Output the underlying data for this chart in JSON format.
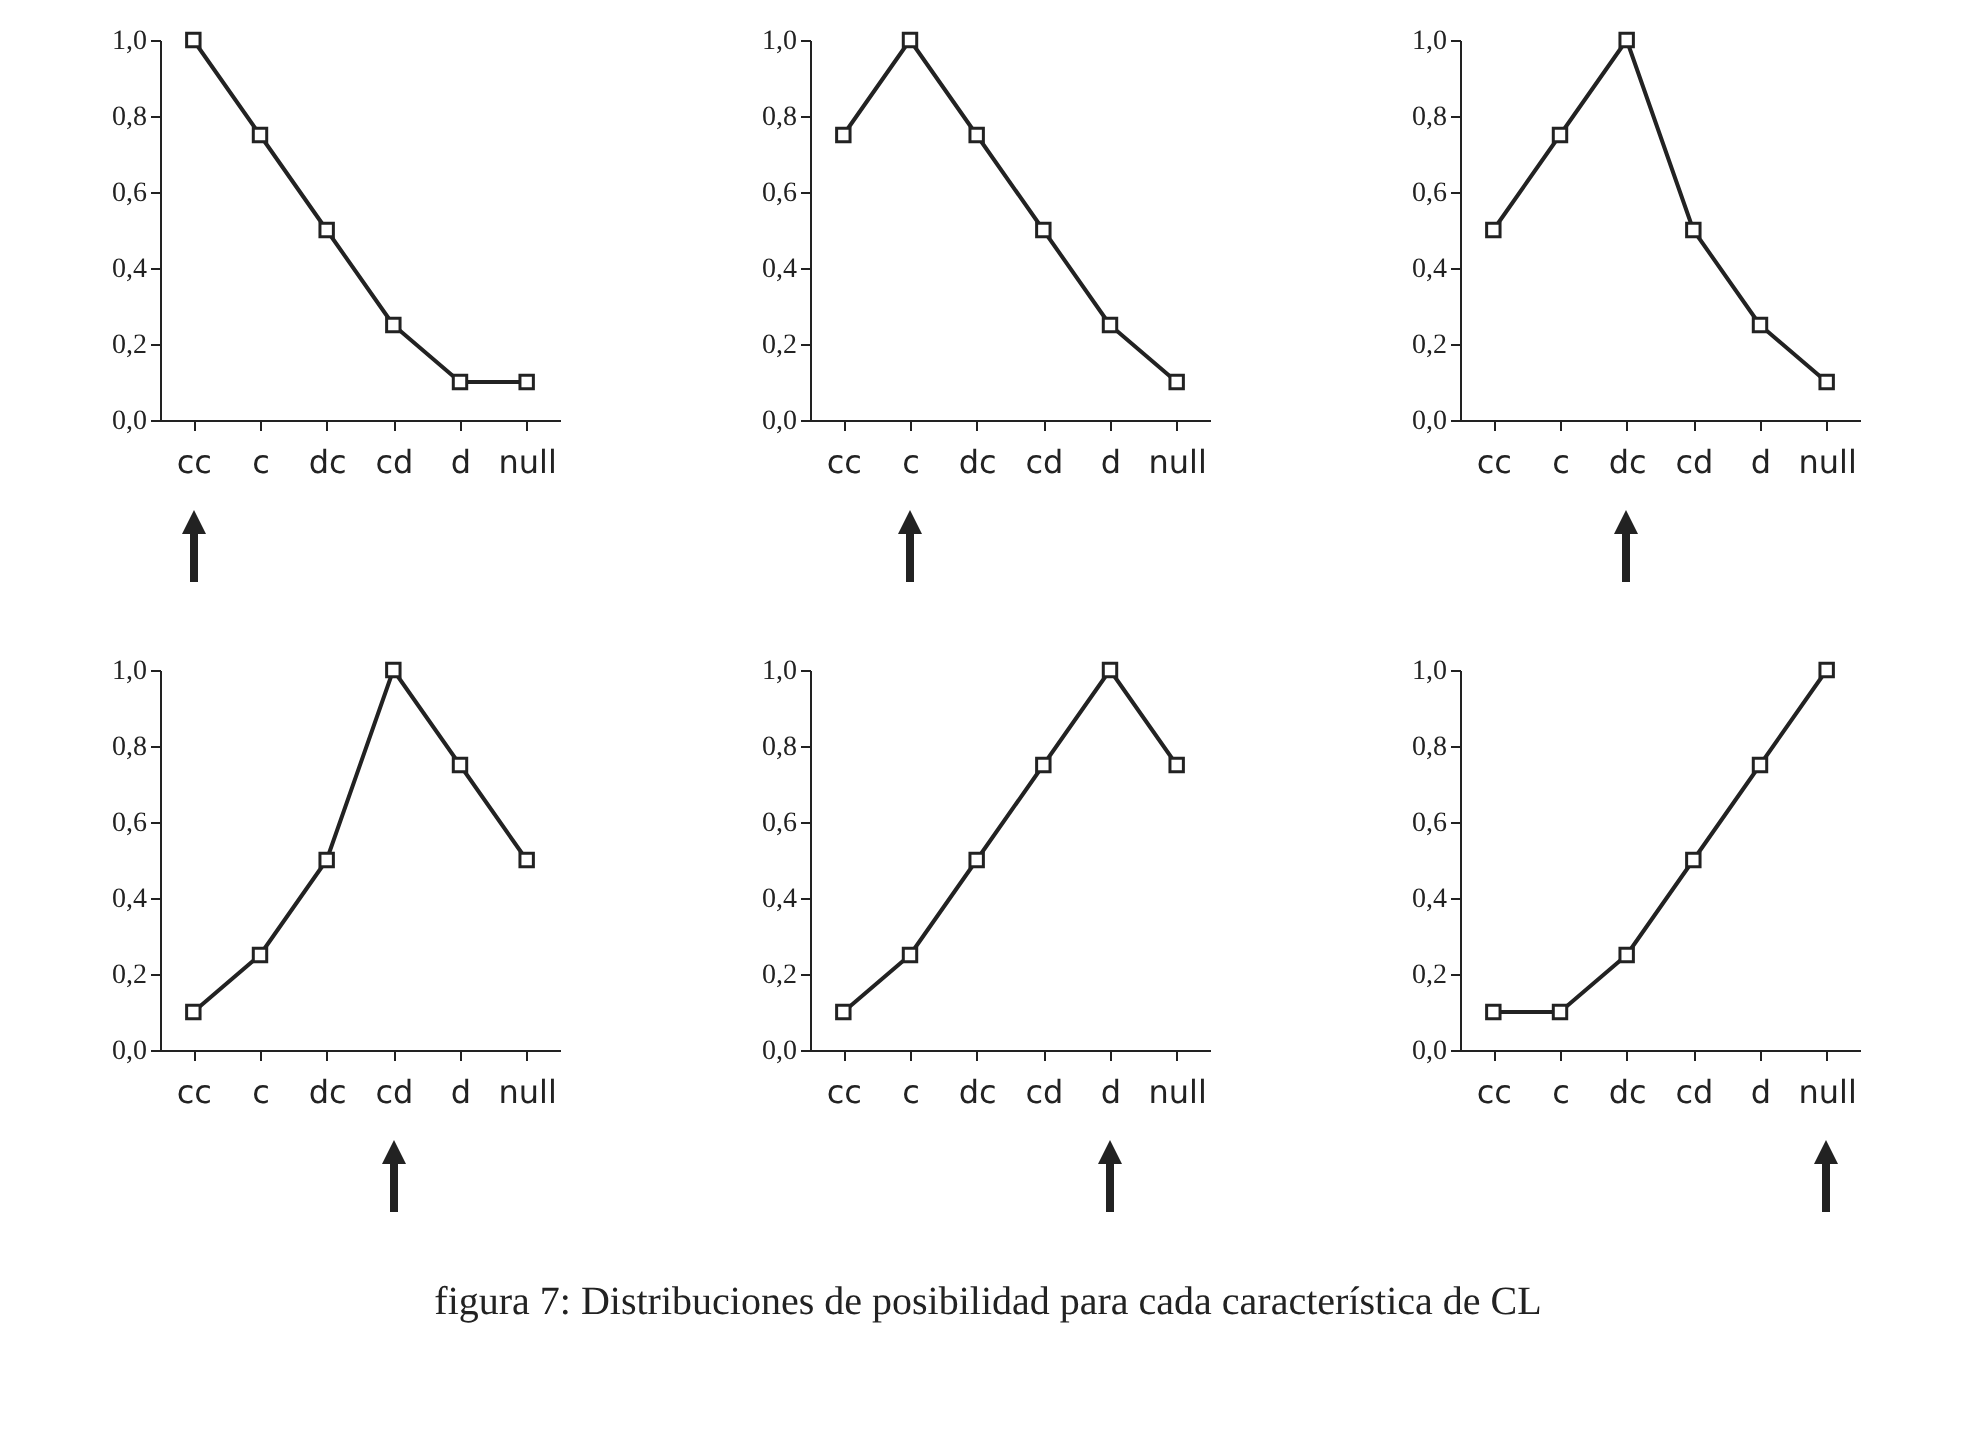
{
  "chart_data": [
    {
      "type": "line",
      "categories": [
        "cc",
        "c",
        "dc",
        "cd",
        "d",
        "null"
      ],
      "values": [
        1.0,
        0.75,
        0.5,
        0.25,
        0.1,
        0.1
      ],
      "color": "#222222",
      "ylim": [
        0,
        1
      ],
      "yticks": [
        {
          "value": 0,
          "label": "0,0"
        },
        {
          "value": 0.2,
          "label": "0,2"
        },
        {
          "value": 0.4,
          "label": "0,4"
        },
        {
          "value": 0.6,
          "label": "0,6"
        },
        {
          "value": 0.8,
          "label": "0,8"
        },
        {
          "value": 1,
          "label": "1,0"
        }
      ],
      "marker": "square",
      "grid": false
    },
    {
      "type": "line",
      "categories": [
        "cc",
        "c",
        "dc",
        "cd",
        "d",
        "null"
      ],
      "values": [
        0.75,
        1.0,
        0.75,
        0.5,
        0.25,
        0.1
      ],
      "color": "#222222",
      "ylim": [
        0,
        1
      ],
      "yticks": [
        {
          "value": 0,
          "label": "0,0"
        },
        {
          "value": 0.2,
          "label": "0,2"
        },
        {
          "value": 0.4,
          "label": "0,4"
        },
        {
          "value": 0.6,
          "label": "0,6"
        },
        {
          "value": 0.8,
          "label": "0,8"
        },
        {
          "value": 1,
          "label": "1,0"
        }
      ],
      "marker": "square",
      "grid": false
    },
    {
      "type": "line",
      "categories": [
        "cc",
        "c",
        "dc",
        "cd",
        "d",
        "null"
      ],
      "values": [
        0.5,
        0.75,
        1.0,
        0.5,
        0.25,
        0.1
      ],
      "color": "#222222",
      "ylim": [
        0,
        1
      ],
      "yticks": [
        {
          "value": 0,
          "label": "0,0"
        },
        {
          "value": 0.2,
          "label": "0,2"
        },
        {
          "value": 0.4,
          "label": "0,4"
        },
        {
          "value": 0.6,
          "label": "0,6"
        },
        {
          "value": 0.8,
          "label": "0,8"
        },
        {
          "value": 1,
          "label": "1,0"
        }
      ],
      "marker": "square",
      "grid": false
    },
    {
      "type": "line",
      "categories": [
        "cc",
        "c",
        "dc",
        "cd",
        "d",
        "null"
      ],
      "values": [
        0.1,
        0.25,
        0.5,
        1.0,
        0.75,
        0.5
      ],
      "color": "#222222",
      "ylim": [
        0,
        1
      ],
      "yticks": [
        {
          "value": 0,
          "label": "0,0"
        },
        {
          "value": 0.2,
          "label": "0,2"
        },
        {
          "value": 0.4,
          "label": "0,4"
        },
        {
          "value": 0.6,
          "label": "0,6"
        },
        {
          "value": 0.8,
          "label": "0,8"
        },
        {
          "value": 1,
          "label": "1,0"
        }
      ],
      "marker": "square",
      "grid": false
    },
    {
      "type": "line",
      "categories": [
        "cc",
        "c",
        "dc",
        "cd",
        "d",
        "null"
      ],
      "values": [
        0.1,
        0.25,
        0.5,
        0.75,
        1.0,
        0.75
      ],
      "color": "#222222",
      "ylim": [
        0,
        1
      ],
      "yticks": [
        {
          "value": 0,
          "label": "0,0"
        },
        {
          "value": 0.2,
          "label": "0,2"
        },
        {
          "value": 0.4,
          "label": "0,4"
        },
        {
          "value": 0.6,
          "label": "0,6"
        },
        {
          "value": 0.8,
          "label": "0,8"
        },
        {
          "value": 1,
          "label": "1,0"
        }
      ],
      "marker": "square",
      "grid": false
    },
    {
      "type": "line",
      "categories": [
        "cc",
        "c",
        "dc",
        "cd",
        "d",
        "null"
      ],
      "values": [
        0.1,
        0.1,
        0.25,
        0.5,
        0.75,
        1.0
      ],
      "color": "#222222",
      "ylim": [
        0,
        1
      ],
      "yticks": [
        {
          "value": 0,
          "label": "0,0"
        },
        {
          "value": 0.2,
          "label": "0,2"
        },
        {
          "value": 0.4,
          "label": "0,4"
        },
        {
          "value": 0.6,
          "label": "0,6"
        },
        {
          "value": 0.8,
          "label": "0,8"
        },
        {
          "value": 1,
          "label": "1,0"
        }
      ],
      "marker": "square",
      "grid": false,
      "annotations": [
        "figura 7: Distribuciones de posibilidad para cada característica de CL"
      ]
    }
  ]
}
